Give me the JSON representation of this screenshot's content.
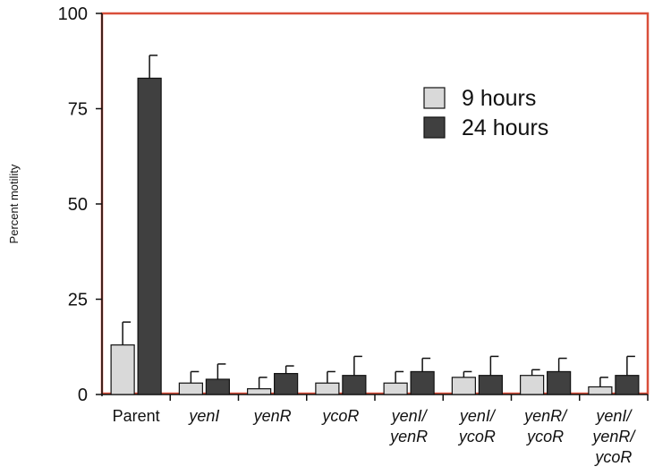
{
  "chart_data": {
    "type": "bar",
    "title": "",
    "xlabel": "",
    "ylabel": "Percent motility",
    "ylim": [
      0,
      100
    ],
    "yticks": [
      "0",
      "25",
      "50",
      "75",
      "100"
    ],
    "categories": [
      [
        "Parent"
      ],
      [
        "yenI"
      ],
      [
        "yenR"
      ],
      [
        "ycoR"
      ],
      [
        "yenI/",
        "yenR"
      ],
      [
        "yenI/",
        "ycoR"
      ],
      [
        "yenR/",
        "ycoR"
      ],
      [
        "yenI/",
        "yenR/",
        "ycoR"
      ]
    ],
    "category_italic": [
      false,
      true,
      true,
      true,
      true,
      true,
      true,
      true
    ],
    "series": [
      {
        "name": "9 hours",
        "color": "#d9d9d9",
        "values": [
          13,
          3,
          1.5,
          3,
          3,
          4.5,
          5,
          2
        ],
        "errors": [
          6,
          3,
          3,
          3,
          3,
          1.5,
          1.5,
          2.5
        ]
      },
      {
        "name": "24 hours",
        "color": "#404040",
        "values": [
          83,
          4,
          5.5,
          5,
          6,
          5,
          6,
          5
        ],
        "errors": [
          6,
          4,
          2,
          5,
          3.5,
          5,
          3.5,
          5
        ]
      }
    ],
    "frame_color": "#d94f3a",
    "legend": "top-right"
  }
}
